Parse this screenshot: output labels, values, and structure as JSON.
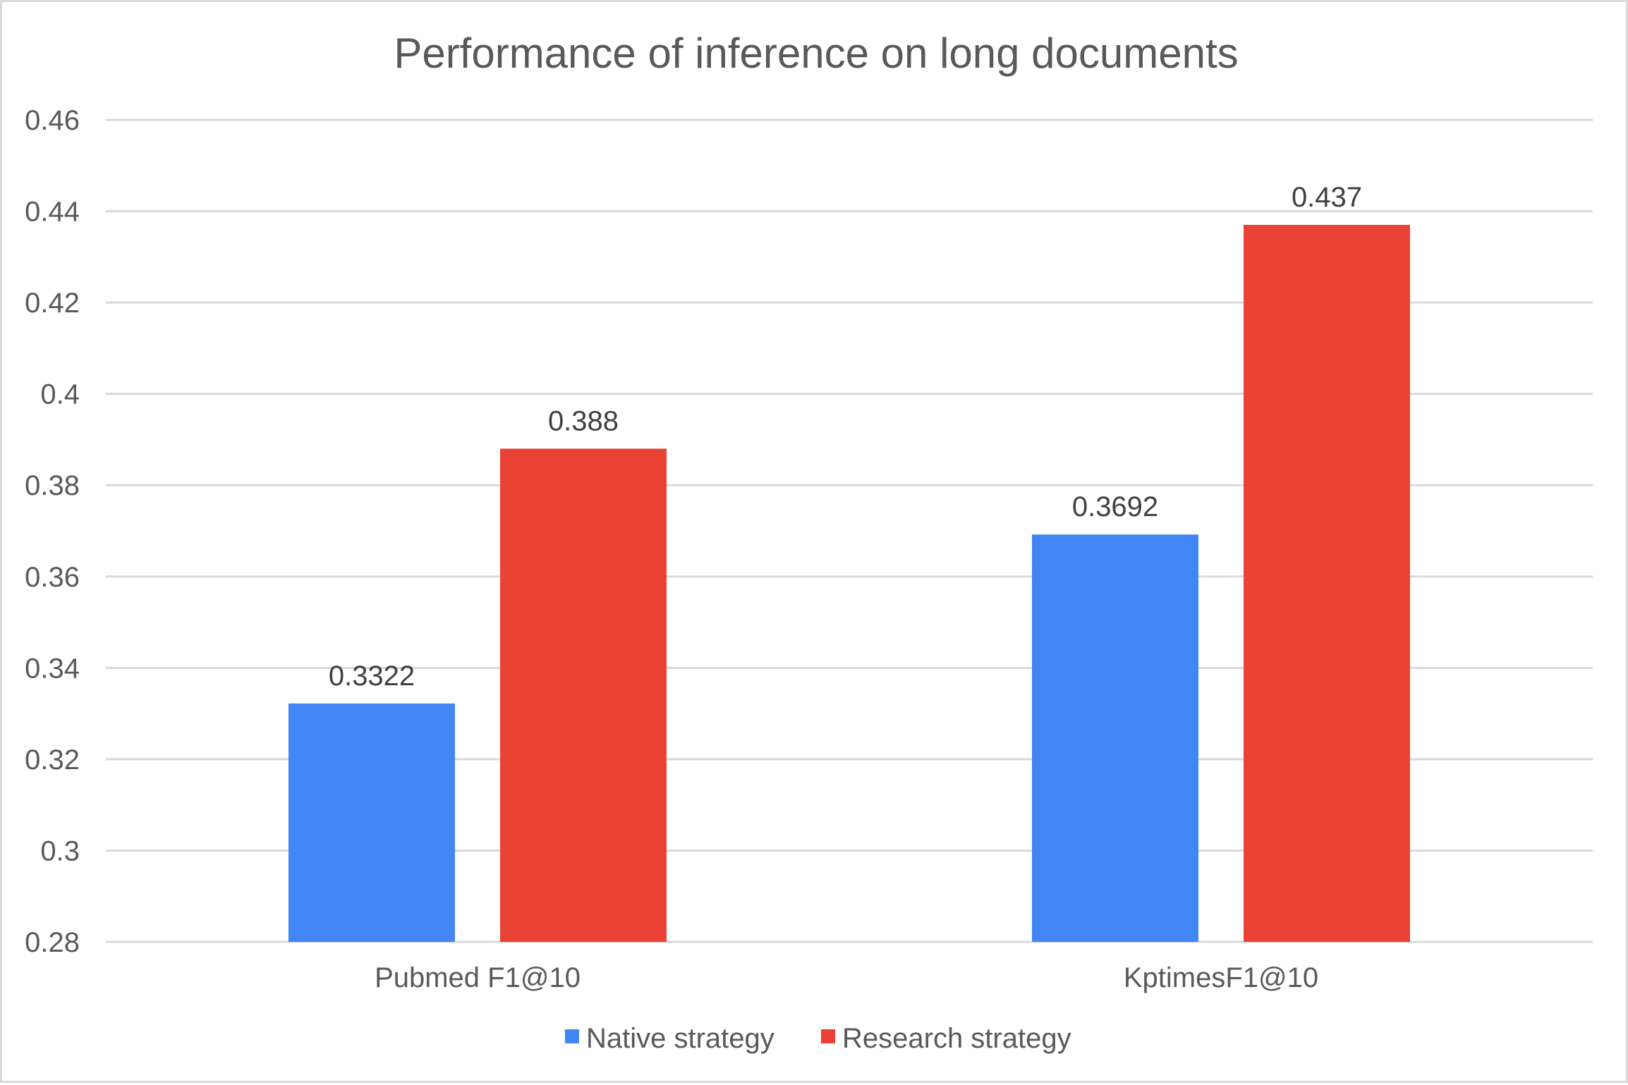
{
  "chart_data": {
    "type": "bar",
    "title": "Performance of inference on long documents",
    "xlabel": "",
    "ylabel": "",
    "categories": [
      "Pubmed F1@10",
      "KptimesF1@10"
    ],
    "series": [
      {
        "name": "Native strategy",
        "color": "#4285F4",
        "values": [
          0.3322,
          0.3692
        ],
        "labels": [
          "0.3322",
          "0.3692"
        ]
      },
      {
        "name": "Research strategy",
        "color": "#EA4335",
        "values": [
          0.388,
          0.437
        ],
        "labels": [
          "0.388",
          "0.437"
        ]
      }
    ],
    "ylim": [
      0.28,
      0.46
    ],
    "yticks": [
      0.28,
      0.3,
      0.32,
      0.34,
      0.36,
      0.38,
      0.4,
      0.42,
      0.44,
      0.46
    ],
    "ytick_labels": [
      "0.28",
      "0.3",
      "0.32",
      "0.34",
      "0.36",
      "0.38",
      "0.4",
      "0.42",
      "0.44",
      "0.46"
    ],
    "grid": true,
    "legend_position": "bottom"
  }
}
